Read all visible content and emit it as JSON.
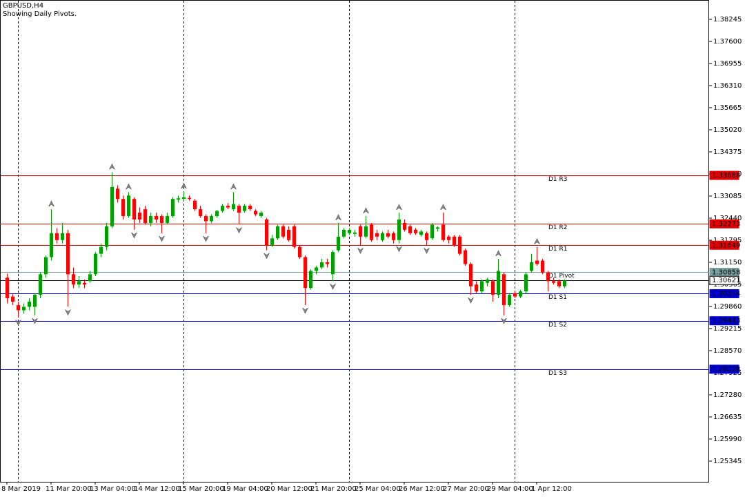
{
  "chart_data": {
    "type": "candlestick",
    "title": "GBPUSD,H4",
    "subtitle": "Showing Daily Pivots.",
    "up_color": "#00a000",
    "down_color": "#ff0000",
    "ylim": [
      1.2474,
      1.3881
    ],
    "yticks": [
      1.38245,
      {
        "value": 1.376,
        "label": "1.37600"
      },
      1.36955,
      {
        "value": 1.3631,
        "label": "1.36310"
      },
      1.35665,
      {
        "value": 1.3502,
        "label": "1.35020"
      },
      1.34375,
      {
        "value": 1.3373,
        "label": "1.33730"
      },
      1.33085,
      {
        "value": 1.3244,
        "label": "1.32440"
      },
      1.31795,
      {
        "value": 1.3115,
        "label": "1.31150"
      },
      1.30505,
      {
        "value": 1.2986,
        "label": "1.29860"
      },
      1.29215,
      {
        "value": 1.2857,
        "label": "1.28570"
      },
      1.27925,
      {
        "value": 1.2728,
        "label": "1.27280"
      },
      1.26635,
      {
        "value": 1.2599,
        "label": "1.25990"
      },
      1.25345
    ],
    "xticks": [
      {
        "value": 0,
        "label": "8 Mar 2019"
      },
      {
        "value": 8,
        "label": "11 Mar 20:00"
      },
      {
        "value": 16,
        "label": "13 Mar 04:00"
      },
      {
        "value": 24,
        "label": "14 Mar 12:00"
      },
      {
        "value": 32,
        "label": "15 Mar 20:00"
      },
      {
        "value": 40,
        "label": "19 Mar 04:00"
      },
      {
        "value": 48,
        "label": "20 Mar 12:00"
      },
      {
        "value": 56,
        "label": "21 Mar 20:00"
      },
      {
        "value": 64,
        "label": "25 Mar 04:00"
      },
      {
        "value": 72,
        "label": "26 Mar 12:00"
      },
      {
        "value": 80,
        "label": "27 Mar 20:00"
      },
      {
        "value": 88,
        "label": "29 Mar 04:00"
      },
      {
        "value": 96,
        "label": "1 Apr 12:00"
      }
    ],
    "period_separators": [
      2,
      32,
      62,
      92
    ],
    "levels": [
      {
        "name": "D1 R3",
        "value": 1.33688,
        "color": "#e00000"
      },
      {
        "name": "D1 R2",
        "value": 1.32273,
        "color": "#e00000"
      },
      {
        "name": "D1 R1",
        "value": 1.31649,
        "color": "#e00000"
      },
      {
        "name": "D1 Pivot",
        "value": 1.30858,
        "color": "#7a9e9e"
      },
      {
        "name": "D1 S1",
        "value": 1.30234,
        "color": "#0000d0"
      },
      {
        "name": "D1 S2",
        "value": 1.29443,
        "color": "#0000d0"
      },
      {
        "name": "D1 S3",
        "value": 1.28028,
        "color": "#0000d0"
      }
    ],
    "current_price": 1.30621,
    "fractals_up": [
      8,
      19,
      22,
      32,
      41,
      60,
      65,
      71,
      79,
      89,
      96
    ],
    "fractals_down": [
      2,
      5,
      11,
      23,
      28,
      36,
      42,
      47,
      54,
      59,
      64,
      71,
      76,
      84,
      90
    ],
    "ohlc": [
      [
        1.307,
        1.3082,
        1.2995,
        1.301
      ],
      [
        1.3015,
        1.3022,
        1.299,
        1.3
      ],
      [
        1.299,
        1.3,
        1.2955,
        1.2975
      ],
      [
        1.2975,
        1.2995,
        1.2965,
        1.2985
      ],
      [
        1.2985,
        1.301,
        1.2975,
        1.3
      ],
      [
        1.2985,
        1.3025,
        1.296,
        1.302
      ],
      [
        1.302,
        1.3085,
        1.301,
        1.308
      ],
      [
        1.308,
        1.3135,
        1.307,
        1.313
      ],
      [
        1.313,
        1.327,
        1.312,
        1.32
      ],
      [
        1.32,
        1.3215,
        1.317,
        1.318
      ],
      [
        1.318,
        1.323,
        1.317,
        1.32
      ],
      [
        1.32,
        1.321,
        1.2985,
        1.308
      ],
      [
        1.308,
        1.31,
        1.304,
        1.305
      ],
      [
        1.305,
        1.3075,
        1.304,
        1.306
      ],
      [
        1.3055,
        1.3065,
        1.304,
        1.305
      ],
      [
        1.306,
        1.309,
        1.3055,
        1.308
      ],
      [
        1.308,
        1.3145,
        1.3075,
        1.314
      ],
      [
        1.314,
        1.317,
        1.313,
        1.316
      ],
      [
        1.316,
        1.323,
        1.315,
        1.322
      ],
      [
        1.322,
        1.3378,
        1.3215,
        1.3335
      ],
      [
        1.333,
        1.334,
        1.329,
        1.33
      ],
      [
        1.33,
        1.331,
        1.324,
        1.325
      ],
      [
        1.325,
        1.332,
        1.3245,
        1.331
      ],
      [
        1.33,
        1.3305,
        1.321,
        1.324
      ],
      [
        1.326,
        1.3275,
        1.323,
        1.324
      ],
      [
        1.327,
        1.328,
        1.3225,
        1.323
      ],
      [
        1.323,
        1.326,
        1.322,
        1.325
      ],
      [
        1.325,
        1.326,
        1.323,
        1.324
      ],
      [
        1.325,
        1.3255,
        1.32,
        1.323
      ],
      [
        1.323,
        1.326,
        1.3225,
        1.325
      ],
      [
        1.325,
        1.3305,
        1.3245,
        1.33
      ],
      [
        1.3298,
        1.331,
        1.329,
        1.3302
      ],
      [
        1.33,
        1.3322,
        1.3295,
        1.3305
      ],
      [
        1.3303,
        1.331,
        1.3295,
        1.33
      ],
      [
        1.3295,
        1.33,
        1.3265,
        1.327
      ],
      [
        1.327,
        1.328,
        1.3245,
        1.325
      ],
      [
        1.325,
        1.3255,
        1.32,
        1.3235
      ],
      [
        1.3235,
        1.3255,
        1.323,
        1.325
      ],
      [
        1.325,
        1.3268,
        1.3245,
        1.3265
      ],
      [
        1.3265,
        1.3285,
        1.326,
        1.328
      ],
      [
        1.328,
        1.3288,
        1.327,
        1.3275
      ],
      [
        1.327,
        1.332,
        1.3265,
        1.3285
      ],
      [
        1.328,
        1.3285,
        1.3225,
        1.326
      ],
      [
        1.3265,
        1.3285,
        1.326,
        1.328
      ],
      [
        1.328,
        1.3285,
        1.3265,
        1.327
      ],
      [
        1.3265,
        1.327,
        1.325,
        1.3255
      ],
      [
        1.325,
        1.3265,
        1.3245,
        1.326
      ],
      [
        1.324,
        1.3245,
        1.315,
        1.3165
      ],
      [
        1.3165,
        1.3195,
        1.316,
        1.3185
      ],
      [
        1.3185,
        1.3225,
        1.318,
        1.322
      ],
      [
        1.322,
        1.3225,
        1.3185,
        1.319
      ],
      [
        1.321,
        1.322,
        1.3175,
        1.318
      ],
      [
        1.322,
        1.3225,
        1.3155,
        1.316
      ],
      [
        1.316,
        1.3165,
        1.3125,
        1.313
      ],
      [
        1.313,
        1.3135,
        1.299,
        1.304
      ],
      [
        1.304,
        1.3095,
        1.3035,
        1.309
      ],
      [
        1.309,
        1.3105,
        1.308,
        1.31
      ],
      [
        1.31,
        1.3125,
        1.3095,
        1.3115
      ],
      [
        1.3115,
        1.3125,
        1.31,
        1.311
      ],
      [
        1.308,
        1.315,
        1.306,
        1.3145
      ],
      [
        1.315,
        1.323,
        1.3145,
        1.319
      ],
      [
        1.319,
        1.3215,
        1.3185,
        1.321
      ],
      [
        1.32,
        1.3215,
        1.3195,
        1.321
      ],
      [
        1.3198,
        1.321,
        1.319,
        1.3202
      ],
      [
        1.322,
        1.3225,
        1.3165,
        1.319
      ],
      [
        1.319,
        1.325,
        1.3185,
        1.322
      ],
      [
        1.3225,
        1.323,
        1.3175,
        1.318
      ],
      [
        1.32,
        1.321,
        1.318,
        1.319
      ],
      [
        1.318,
        1.3205,
        1.3175,
        1.32
      ],
      [
        1.32,
        1.321,
        1.3185,
        1.319
      ],
      [
        1.32,
        1.3205,
        1.317,
        1.318
      ],
      [
        1.318,
        1.326,
        1.317,
        1.324
      ],
      [
        1.323,
        1.324,
        1.3205,
        1.321
      ],
      [
        1.322,
        1.3225,
        1.3195,
        1.32
      ],
      [
        1.321,
        1.3215,
        1.3195,
        1.32
      ],
      [
        1.3195,
        1.321,
        1.319,
        1.3205
      ],
      [
        1.32,
        1.3205,
        1.3165,
        1.318
      ],
      [
        1.3185,
        1.323,
        1.318,
        1.3225
      ],
      [
        1.3213,
        1.322,
        1.3205,
        1.3217
      ],
      [
        1.3225,
        1.326,
        1.3175,
        1.318
      ],
      [
        1.319,
        1.3195,
        1.317,
        1.318
      ],
      [
        1.319,
        1.3195,
        1.316,
        1.3165
      ],
      [
        1.319,
        1.3195,
        1.3135,
        1.314
      ],
      [
        1.315,
        1.3155,
        1.3105,
        1.311
      ],
      [
        1.311,
        1.3115,
        1.302,
        1.3045
      ],
      [
        1.305,
        1.306,
        1.3025,
        1.303
      ],
      [
        1.303,
        1.3065,
        1.3025,
        1.306
      ],
      [
        1.3055,
        1.307,
        1.3045,
        1.3065
      ],
      [
        1.306,
        1.3065,
        1.3,
        1.302
      ],
      [
        1.302,
        1.3125,
        1.301,
        1.309
      ],
      [
        1.308,
        1.3085,
        1.296,
        1.299
      ],
      [
        1.299,
        1.3025,
        1.2985,
        1.302
      ],
      [
        1.3025,
        1.303,
        1.301,
        1.3015
      ],
      [
        1.3015,
        1.3035,
        1.301,
        1.303
      ],
      [
        1.303,
        1.3085,
        1.3025,
        1.308
      ],
      [
        1.309,
        1.314,
        1.3085,
        1.3115
      ],
      [
        1.312,
        1.316,
        1.3105,
        1.311
      ],
      [
        1.312,
        1.3125,
        1.308,
        1.3085
      ],
      [
        1.3085,
        1.309,
        1.303,
        1.306
      ],
      [
        1.306,
        1.307,
        1.305,
        1.3055
      ],
      [
        1.306,
        1.3065,
        1.304,
        1.3045
      ],
      [
        1.3045,
        1.3065,
        1.304,
        1.3062
      ]
    ]
  }
}
